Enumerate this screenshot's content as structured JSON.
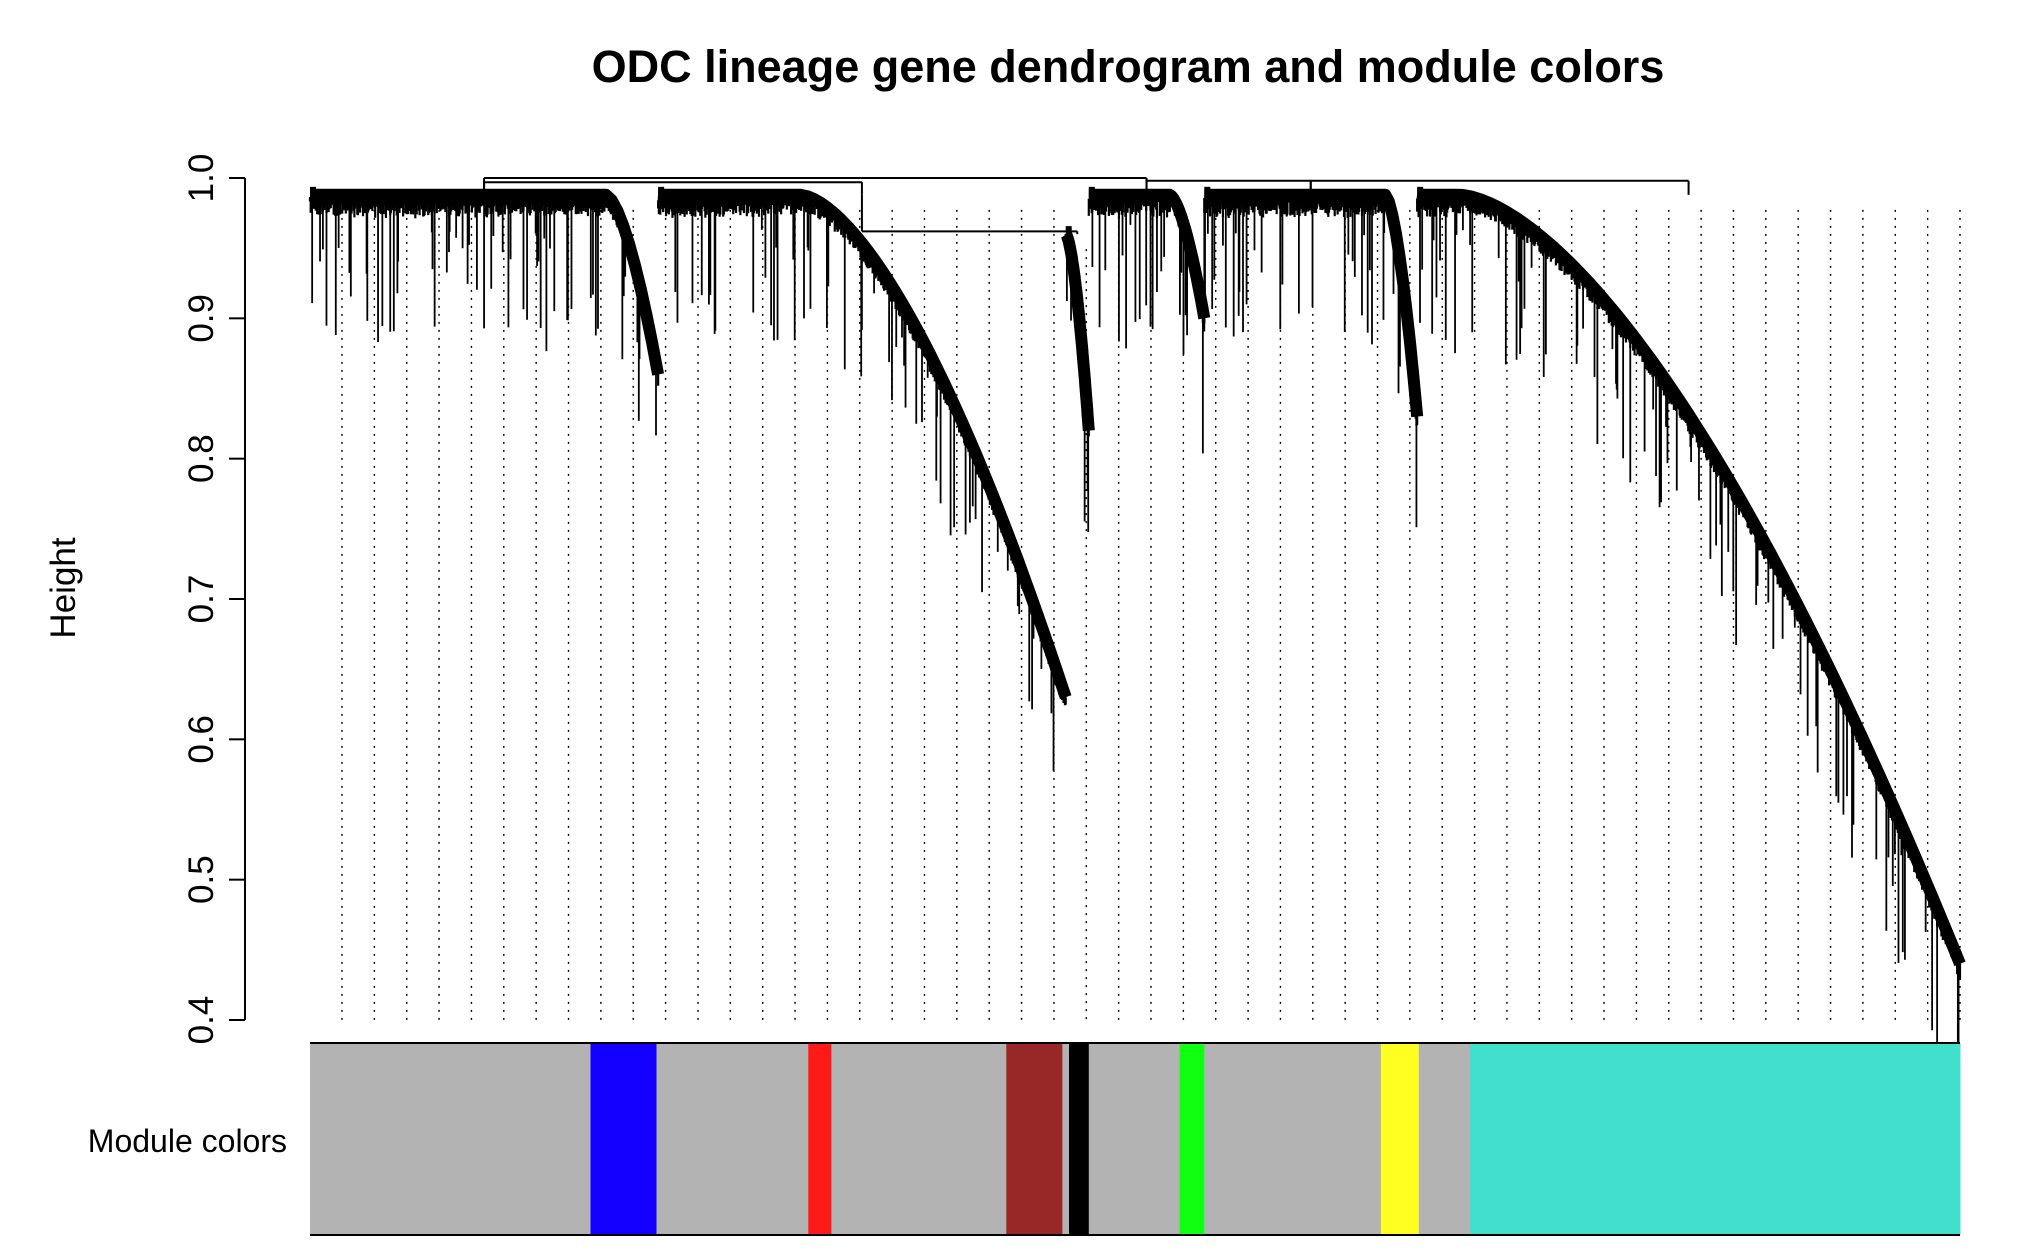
{
  "chart_data": {
    "type": "dendrogram",
    "title": "ODC lineage gene dendrogram and module colors",
    "ylabel": "Height",
    "xlabel": "",
    "ylim": [
      0.4,
      1.0
    ],
    "yticks": [
      {
        "value": 0.4,
        "label": "0.4"
      },
      {
        "value": 0.5,
        "label": "0.5"
      },
      {
        "value": 0.6,
        "label": "0.6"
      },
      {
        "value": 0.7,
        "label": "0.7"
      },
      {
        "value": 0.8,
        "label": "0.8"
      },
      {
        "value": 0.9,
        "label": "0.9"
      },
      {
        "value": 1.0,
        "label": "1.0"
      }
    ],
    "color_strip_label": "Module colors",
    "colors": {
      "grey": "#b3b3b3",
      "blue": "#1400ff",
      "red": "#ff1a1a",
      "brown": "#982828",
      "black": "#000000",
      "green": "#11ff11",
      "yellow": "#ffff22",
      "turquoise": "#40e0cd"
    },
    "module_segments": [
      {
        "module": "grey",
        "start": 0.0,
        "end": 0.17
      },
      {
        "module": "blue",
        "start": 0.17,
        "end": 0.21
      },
      {
        "module": "grey",
        "start": 0.21,
        "end": 0.302
      },
      {
        "module": "red",
        "start": 0.302,
        "end": 0.316
      },
      {
        "module": "grey",
        "start": 0.316,
        "end": 0.422
      },
      {
        "module": "brown",
        "start": 0.422,
        "end": 0.456
      },
      {
        "module": "grey",
        "start": 0.456,
        "end": 0.46
      },
      {
        "module": "black",
        "start": 0.46,
        "end": 0.472
      },
      {
        "module": "grey",
        "start": 0.472,
        "end": 0.527
      },
      {
        "module": "green",
        "start": 0.527,
        "end": 0.542
      },
      {
        "module": "grey",
        "start": 0.542,
        "end": 0.649
      },
      {
        "module": "yellow",
        "start": 0.649,
        "end": 0.672
      },
      {
        "module": "grey",
        "start": 0.672,
        "end": 0.703
      },
      {
        "module": "turquoise",
        "start": 0.703,
        "end": 1.0
      }
    ],
    "clusters": [
      {
        "start": 0.0,
        "end": 0.211,
        "base_height": 0.988,
        "min_height": 0.86,
        "curve_start": 0.85
      },
      {
        "start": 0.211,
        "end": 0.458,
        "base_height": 0.988,
        "min_height": 0.63,
        "curve_start": 0.35
      },
      {
        "start": 0.458,
        "end": 0.472,
        "base_height": 0.96,
        "min_height": 0.82,
        "curve_start": 0.0
      },
      {
        "start": 0.472,
        "end": 0.542,
        "base_height": 0.988,
        "min_height": 0.9,
        "curve_start": 0.7
      },
      {
        "start": 0.542,
        "end": 0.671,
        "base_height": 0.988,
        "min_height": 0.83,
        "curve_start": 0.85
      },
      {
        "start": 0.671,
        "end": 1.0,
        "base_height": 0.988,
        "min_height": 0.44,
        "curve_start": 0.08
      }
    ],
    "merges": [
      {
        "left": 0,
        "right": 1,
        "height": 0.997
      },
      {
        "left": 1,
        "right": 2,
        "height": 0.962
      },
      {
        "left": 3,
        "right": 4,
        "height": 0.998
      },
      {
        "left": 4,
        "right": 5,
        "height": 0.998
      },
      {
        "left": 0,
        "right": 3,
        "height": 1.0
      }
    ]
  }
}
